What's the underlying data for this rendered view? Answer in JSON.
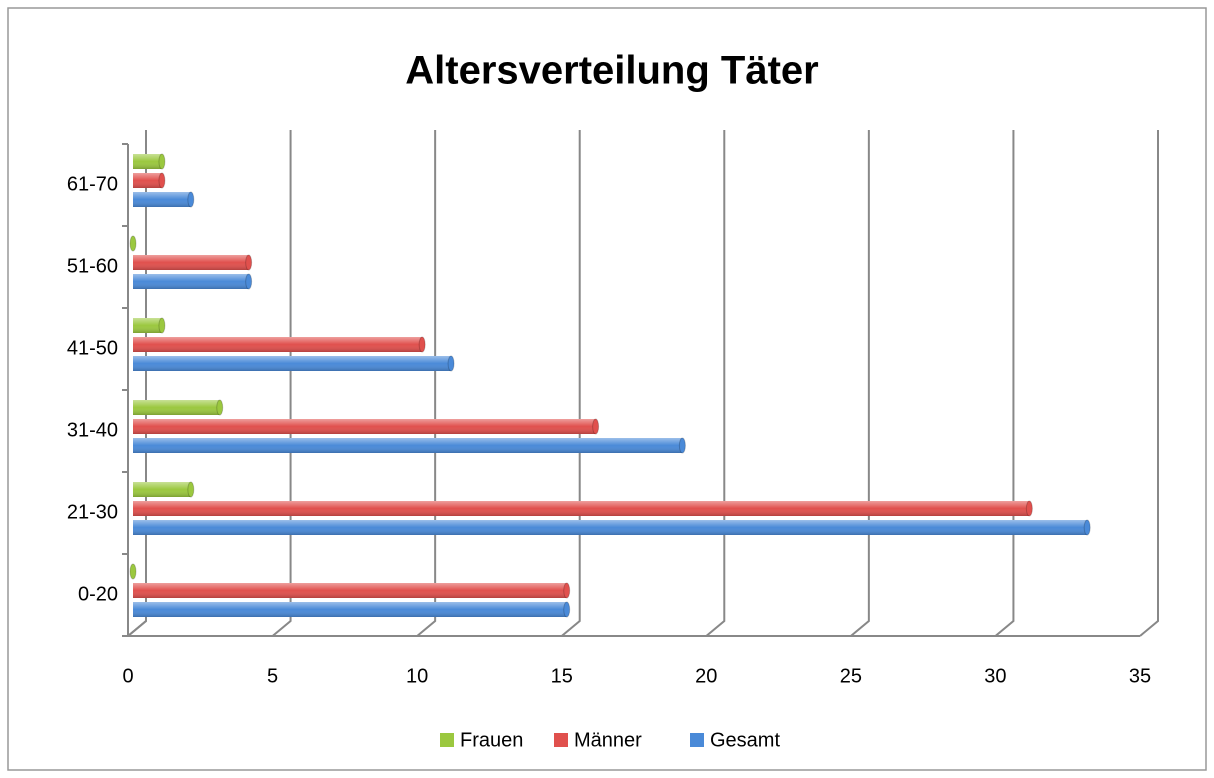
{
  "chart_data": {
    "type": "barh",
    "title": "Altersverteilung Täter",
    "categories": [
      "0-20",
      "21-30",
      "31-40",
      "41-50",
      "51-60",
      "61-70"
    ],
    "series": [
      {
        "name": "Frauen",
        "color": "#9bc83f",
        "values": [
          0,
          2,
          3,
          1,
          0,
          1
        ]
      },
      {
        "name": "Männer",
        "color": "#e0504d",
        "values": [
          15,
          31,
          16,
          10,
          4,
          1
        ]
      },
      {
        "name": "Gesamt",
        "color": "#4a8ad8",
        "values": [
          15,
          33,
          19,
          11,
          4,
          2
        ]
      }
    ],
    "xlim": [
      0,
      35
    ],
    "xticks": [
      0,
      5,
      10,
      15,
      20,
      25,
      30,
      35
    ],
    "grid": true,
    "legend": "bottom"
  }
}
